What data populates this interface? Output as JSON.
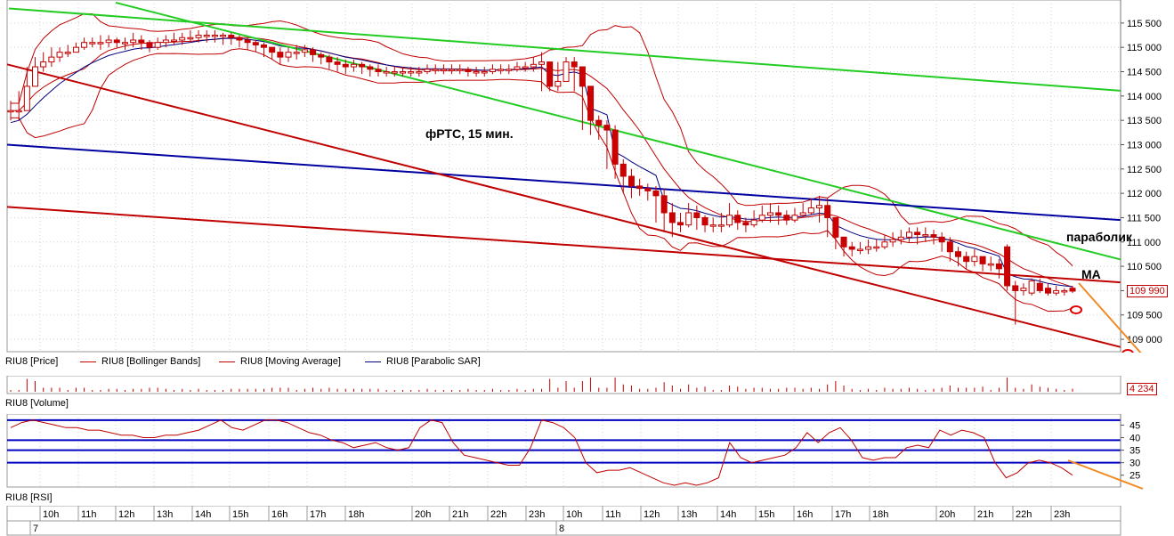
{
  "chart_data": [
    {
      "type": "candlestick",
      "title": "фРТС, 15 мин.",
      "instrument": "RIU8",
      "ylim": [
        108800,
        115900
      ],
      "y_ticks": [
        109000,
        109500,
        110000,
        110500,
        111000,
        111500,
        112000,
        112500,
        113000,
        113500,
        114000,
        114500,
        115000,
        115500
      ],
      "y_tick_labels": [
        "109 000",
        "109 500",
        "110 000",
        "110 500",
        "111 000",
        "111 500",
        "112 000",
        "112 500",
        "113 000",
        "113 500",
        "114 000",
        "114 500",
        "115 000",
        "115 500"
      ],
      "last_price_label": "109 990",
      "annotations": [
        "параболик",
        "MA"
      ],
      "legend": [
        {
          "label": "RIU8 [Price]",
          "color": "#000000"
        },
        {
          "label": "RIU8 [Bollinger Bands]",
          "color": "#c00000"
        },
        {
          "label": "RIU8 [Moving Average]",
          "color": "#c00000"
        },
        {
          "label": "RIU8 [Parabolic SAR]",
          "color": "#000080"
        }
      ],
      "close_series": [
        113700,
        113700,
        114200,
        114600,
        114700,
        114800,
        114900,
        114900,
        115000,
        115100,
        115100,
        115100,
        115150,
        115100,
        115100,
        115150,
        115100,
        115000,
        115100,
        115150,
        115150,
        115200,
        115200,
        115250,
        115250,
        115250,
        115250,
        115200,
        115150,
        115100,
        115050,
        115000,
        114900,
        114800,
        114900,
        114900,
        114950,
        114850,
        114800,
        114700,
        114650,
        114600,
        114650,
        114600,
        114550,
        114500,
        114500,
        114500,
        114500,
        114500,
        114500,
        114550,
        114550,
        114550,
        114550,
        114550,
        114500,
        114500,
        114500,
        114550,
        114550,
        114550,
        114600,
        114600,
        114650,
        114700,
        114200,
        114300,
        114700,
        114600,
        114200,
        113500,
        113400,
        113300,
        112600,
        112350,
        112150,
        112100,
        112050,
        111950,
        111600,
        111400,
        111350,
        111600,
        111500,
        111350,
        111350,
        111350,
        111550,
        111400,
        111350,
        111450,
        111550,
        111600,
        111550,
        111450,
        111550,
        111600,
        111700,
        111750,
        111500,
        111100,
        110900,
        110850,
        110850,
        110900,
        110900,
        111000,
        111050,
        111100,
        111200,
        111150,
        111150,
        111100,
        111000,
        110800,
        110700,
        110600,
        110700,
        110550,
        110550,
        110450
      ],
      "high_series": [
        113900,
        114100,
        114600,
        114800,
        114900,
        115000,
        115000,
        115050,
        115100,
        115200,
        115200,
        115250,
        115250,
        115200,
        115200,
        115300,
        115250,
        115150,
        115200,
        115250,
        115300,
        115300,
        115350,
        115350,
        115350,
        115350,
        115300,
        115300,
        115250,
        115200,
        115150,
        115100,
        115000,
        115000,
        115000,
        115050,
        115050,
        115000,
        114900,
        114850,
        114800,
        114750,
        114750,
        114700,
        114650,
        114650,
        114600,
        114600,
        114600,
        114600,
        114600,
        114650,
        114650,
        114650,
        114650,
        114650,
        114600,
        114600,
        114600,
        114650,
        114650,
        114650,
        114700,
        114700,
        114800,
        114900,
        114700,
        114700,
        114800,
        114800,
        114600,
        114200,
        113600,
        113500,
        113400,
        112700,
        112500,
        112300,
        112200,
        112150,
        112100,
        111800,
        111600,
        111800,
        111750,
        111550,
        111500,
        111600,
        111800,
        111650,
        111500,
        111650,
        111750,
        111800,
        111750,
        111650,
        111700,
        111800,
        111900,
        111950,
        111900,
        111400,
        111100,
        111000,
        111000,
        111050,
        111050,
        111150,
        111200,
        111250,
        111300,
        111300,
        111300,
        111250,
        111200,
        111100,
        110900,
        110800,
        110850,
        110700,
        110700,
        110650
      ],
      "low_series": [
        113500,
        113500,
        113700,
        114200,
        114500,
        114600,
        114700,
        114800,
        114900,
        114950,
        115000,
        114950,
        115000,
        115000,
        114950,
        115000,
        114950,
        114900,
        114950,
        115000,
        115050,
        115050,
        115100,
        115100,
        115100,
        115100,
        115050,
        115050,
        115000,
        114950,
        114900,
        114800,
        114750,
        114650,
        114700,
        114750,
        114800,
        114700,
        114650,
        114550,
        114500,
        114450,
        114500,
        114450,
        114400,
        114400,
        114400,
        114400,
        114400,
        114400,
        114400,
        114450,
        114450,
        114450,
        114450,
        114450,
        114400,
        114400,
        114400,
        114450,
        114450,
        114450,
        114500,
        114500,
        114500,
        114100,
        114100,
        114100,
        114400,
        114100,
        113300,
        113200,
        113100,
        112500,
        112300,
        112000,
        111900,
        111950,
        111850,
        111400,
        111200,
        111100,
        111200,
        111300,
        111250,
        111200,
        111200,
        111200,
        111300,
        111250,
        111200,
        111300,
        111400,
        111400,
        111350,
        111350,
        111400,
        111500,
        111550,
        111400,
        111100,
        110850,
        110700,
        110700,
        110750,
        110750,
        110800,
        110850,
        110900,
        110950,
        111000,
        110950,
        111000,
        110950,
        110800,
        110600,
        110500,
        110450,
        110500,
        110400,
        110400,
        110250
      ],
      "open_series": [
        113700,
        113700,
        113700,
        114200,
        114600,
        114700,
        114800,
        114900,
        114900,
        115000,
        115100,
        115100,
        115100,
        115150,
        115100,
        115100,
        115150,
        115100,
        115000,
        115100,
        115150,
        115150,
        115200,
        115200,
        115250,
        115250,
        115250,
        115250,
        115200,
        115150,
        115100,
        115050,
        115000,
        114900,
        114800,
        114900,
        114900,
        114950,
        114850,
        114800,
        114700,
        114650,
        114600,
        114650,
        114600,
        114550,
        114500,
        114500,
        114500,
        114500,
        114500,
        114500,
        114550,
        114550,
        114550,
        114550,
        114550,
        114500,
        114500,
        114500,
        114550,
        114550,
        114550,
        114600,
        114600,
        114650,
        114700,
        114200,
        114300,
        114700,
        114600,
        114200,
        113500,
        113400,
        113300,
        112600,
        112350,
        112150,
        112100,
        112050,
        111950,
        111600,
        111400,
        111350,
        111600,
        111500,
        111350,
        111350,
        111350,
        111550,
        111400,
        111350,
        111450,
        111550,
        111600,
        111550,
        111450,
        111550,
        111600,
        111700,
        111750,
        111500,
        111100,
        110900,
        110850,
        110850,
        110900,
        110900,
        111000,
        111050,
        111100,
        111200,
        111150,
        111150,
        111100,
        111000,
        110800,
        110700,
        110600,
        110700,
        110550,
        110550
      ],
      "tail_close": [
        110100,
        110000,
        110050,
        110200,
        110000,
        109950,
        110000,
        110000,
        109990
      ],
      "tail_open": [
        110900,
        110100,
        110000,
        109950,
        110150,
        110050,
        109950,
        110000,
        110050
      ],
      "tail_high": [
        110950,
        110200,
        110150,
        110250,
        110250,
        110150,
        110100,
        110050,
        110100
      ],
      "tail_low": [
        110000,
        109300,
        109900,
        109900,
        109950,
        109900,
        109900,
        109900,
        109950
      ]
    },
    {
      "type": "bar",
      "name": "RIU8 [Volume]",
      "last_value_label": "4 234"
    },
    {
      "type": "line",
      "name": "RIU8 [RSI]",
      "y_tick_labels": [
        "45",
        "40",
        "35",
        "30",
        "25"
      ],
      "y_ticks": [
        45,
        40,
        35,
        30,
        25
      ],
      "ylim": [
        21,
        48
      ],
      "levels": [
        47,
        39,
        35,
        30
      ],
      "values": [
        44,
        46,
        47,
        46,
        45,
        44,
        44,
        43,
        43,
        42,
        41,
        41,
        40,
        40,
        41,
        41,
        42,
        43,
        45,
        47,
        44,
        43,
        45,
        47,
        47,
        46,
        44,
        42,
        41,
        39,
        38,
        36,
        37,
        38,
        36,
        35,
        36,
        44,
        47,
        46,
        38,
        33,
        32,
        31,
        30,
        29,
        29,
        36,
        47,
        46,
        44,
        40,
        30,
        26,
        27,
        27,
        28,
        26,
        24,
        22,
        20,
        22,
        21,
        22,
        24,
        38,
        32,
        30,
        31,
        32,
        33,
        36,
        42,
        38,
        42,
        44,
        39,
        32,
        31,
        32,
        32,
        36,
        37,
        36,
        43,
        41,
        43,
        42,
        40,
        30,
        24,
        26,
        30,
        31,
        30,
        28,
        25
      ]
    }
  ],
  "x_axis": {
    "hours": [
      "10h",
      "11h",
      "12h",
      "13h",
      "14h",
      "15h",
      "16h",
      "17h",
      "18h",
      "20h",
      "21h",
      "22h",
      "23h",
      "10h",
      "11h",
      "12h",
      "13h",
      "14h",
      "15h",
      "16h",
      "17h",
      "18h",
      "20h",
      "21h",
      "22h",
      "23h"
    ],
    "days": [
      "7",
      "8"
    ]
  },
  "colors": {
    "bollinger": "#c00000",
    "ma": "#c00000",
    "parabolic": "#000080",
    "trend_green": "#22cc22",
    "trend_red": "#c00000",
    "trend_blue": "#0000a0",
    "bull_candle": "#c00000",
    "bear_candle": "#cc0000",
    "forecast_arrow": "#f08a24",
    "rsi_level": "#0000c0"
  }
}
